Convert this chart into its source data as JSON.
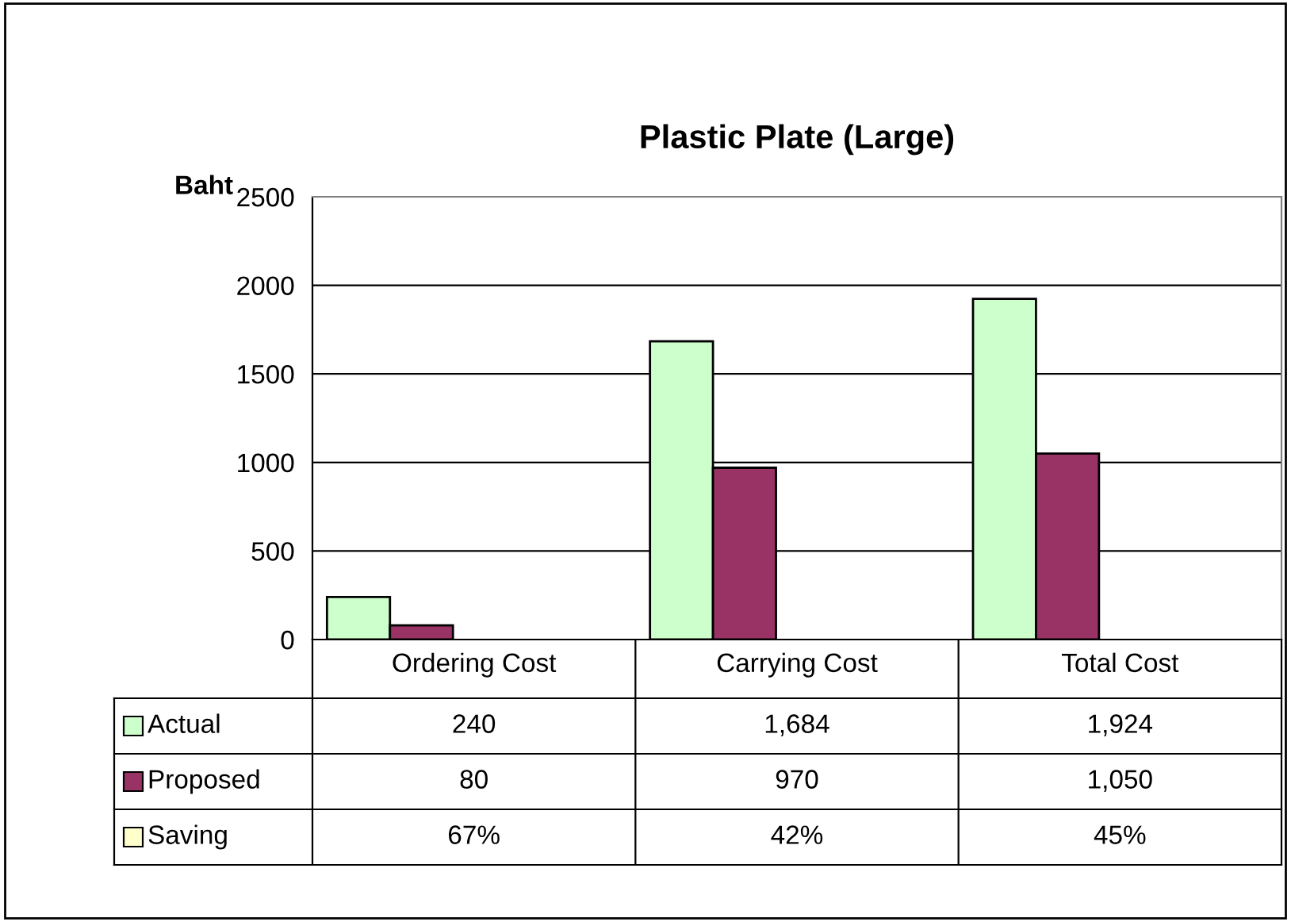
{
  "chart_data": {
    "type": "bar",
    "title": "Plastic Plate (Large)",
    "ylabel": "Baht",
    "categories": [
      "Ordering Cost",
      "Carrying Cost",
      "Total Cost"
    ],
    "series": [
      {
        "name": "Actual",
        "color": "#ccffcc",
        "values": [
          240,
          1684,
          1924
        ],
        "value_labels": [
          "240",
          "1,684",
          "1,924"
        ]
      },
      {
        "name": "Proposed",
        "color": "#993366",
        "values": [
          80,
          970,
          1050
        ],
        "value_labels": [
          "80",
          "970",
          "1,050"
        ]
      },
      {
        "name": "Saving",
        "color": "#ffffcc",
        "values": [
          null,
          null,
          null
        ],
        "value_labels": [
          "67%",
          "42%",
          "45%"
        ]
      }
    ],
    "ylim": [
      0,
      2500
    ],
    "yticks": [
      0,
      500,
      1000,
      1500,
      2000,
      2500
    ],
    "grid": "y",
    "legend": "bottom left"
  }
}
